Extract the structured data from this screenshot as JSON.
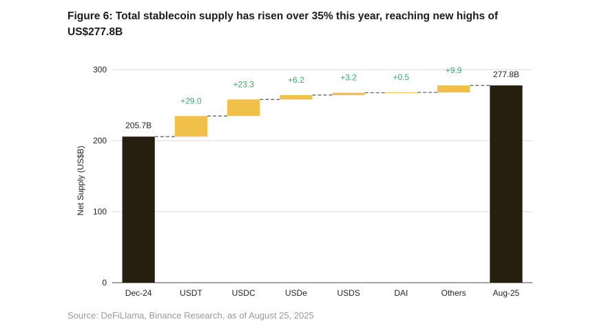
{
  "figure": {
    "title": "Figure 6: Total stablecoin supply has risen over 35% this year, reaching new highs of US$277.8B",
    "source": "Source: DeFiLlama, Binance Research, as of August 25, 2025"
  },
  "colors": {
    "total_bar": "#261e0f",
    "delta_bar": "#f0c048",
    "delta_label": "#3aa96a",
    "grid": "#d9d9d9",
    "connector": "#555555",
    "text": "#222222"
  },
  "chart_data": {
    "type": "bar",
    "subtype": "waterfall",
    "categories": [
      "Dec-24",
      "USDT",
      "USDC",
      "USDe",
      "USDS",
      "DAI",
      "Others",
      "Aug-25"
    ],
    "kinds": [
      "total",
      "delta",
      "delta",
      "delta",
      "delta",
      "delta",
      "delta",
      "total"
    ],
    "values": [
      205.7,
      29.0,
      23.3,
      6.2,
      3.2,
      0.5,
      9.9,
      277.8
    ],
    "labels": [
      "205.7B",
      "+29.0",
      "+23.3",
      "+6.2",
      "+3.2",
      "+0.5",
      "+9.9",
      "277.8B"
    ],
    "ylabel": "Net Supply (US$B)",
    "xlabel": "",
    "ylim": [
      0,
      300
    ],
    "yticks": [
      0,
      100,
      200,
      300
    ],
    "grid": true,
    "legend": "none"
  }
}
